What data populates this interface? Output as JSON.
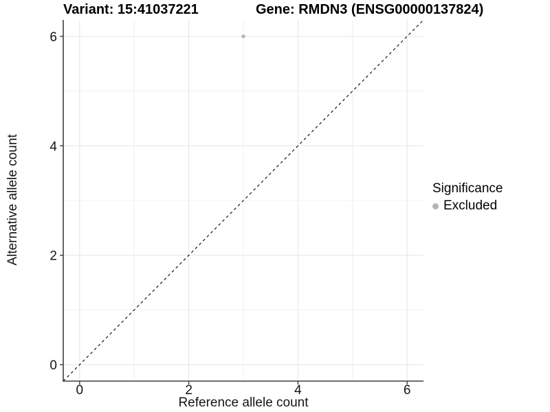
{
  "chart_data": {
    "type": "scatter",
    "title_left": "Variant: 15:41037221",
    "title_right": "Gene: RMDN3 (ENSG00000137824)",
    "xlabel": "Reference allele count",
    "ylabel": "Alternative allele count",
    "xlim": [
      -0.3,
      6.3
    ],
    "ylim": [
      -0.3,
      6.3
    ],
    "xticks": [
      0,
      2,
      4,
      6
    ],
    "yticks": [
      0,
      2,
      4,
      6
    ],
    "x_minor": [
      1,
      3,
      5
    ],
    "y_minor": [
      1,
      3,
      5
    ],
    "grid": "major and minor, light grey on white",
    "reference_line": {
      "type": "abline",
      "slope": 1,
      "intercept": 0,
      "style": "dashed",
      "color": "#000000"
    },
    "series": [
      {
        "name": "Excluded",
        "color": "#b4b4b4",
        "points": [
          {
            "x": 3,
            "y": 6
          }
        ]
      }
    ],
    "legend": {
      "title": "Significance",
      "position": "right",
      "items": [
        {
          "label": "Excluded",
          "color": "#b4b4b4"
        }
      ]
    },
    "colors": {
      "background": "#ffffff",
      "grid_major": "#e4e4e4",
      "grid_minor": "#f0f0f0",
      "axis": "#3d3d3d",
      "text": "#141414",
      "point": "#b4b4b4"
    }
  }
}
